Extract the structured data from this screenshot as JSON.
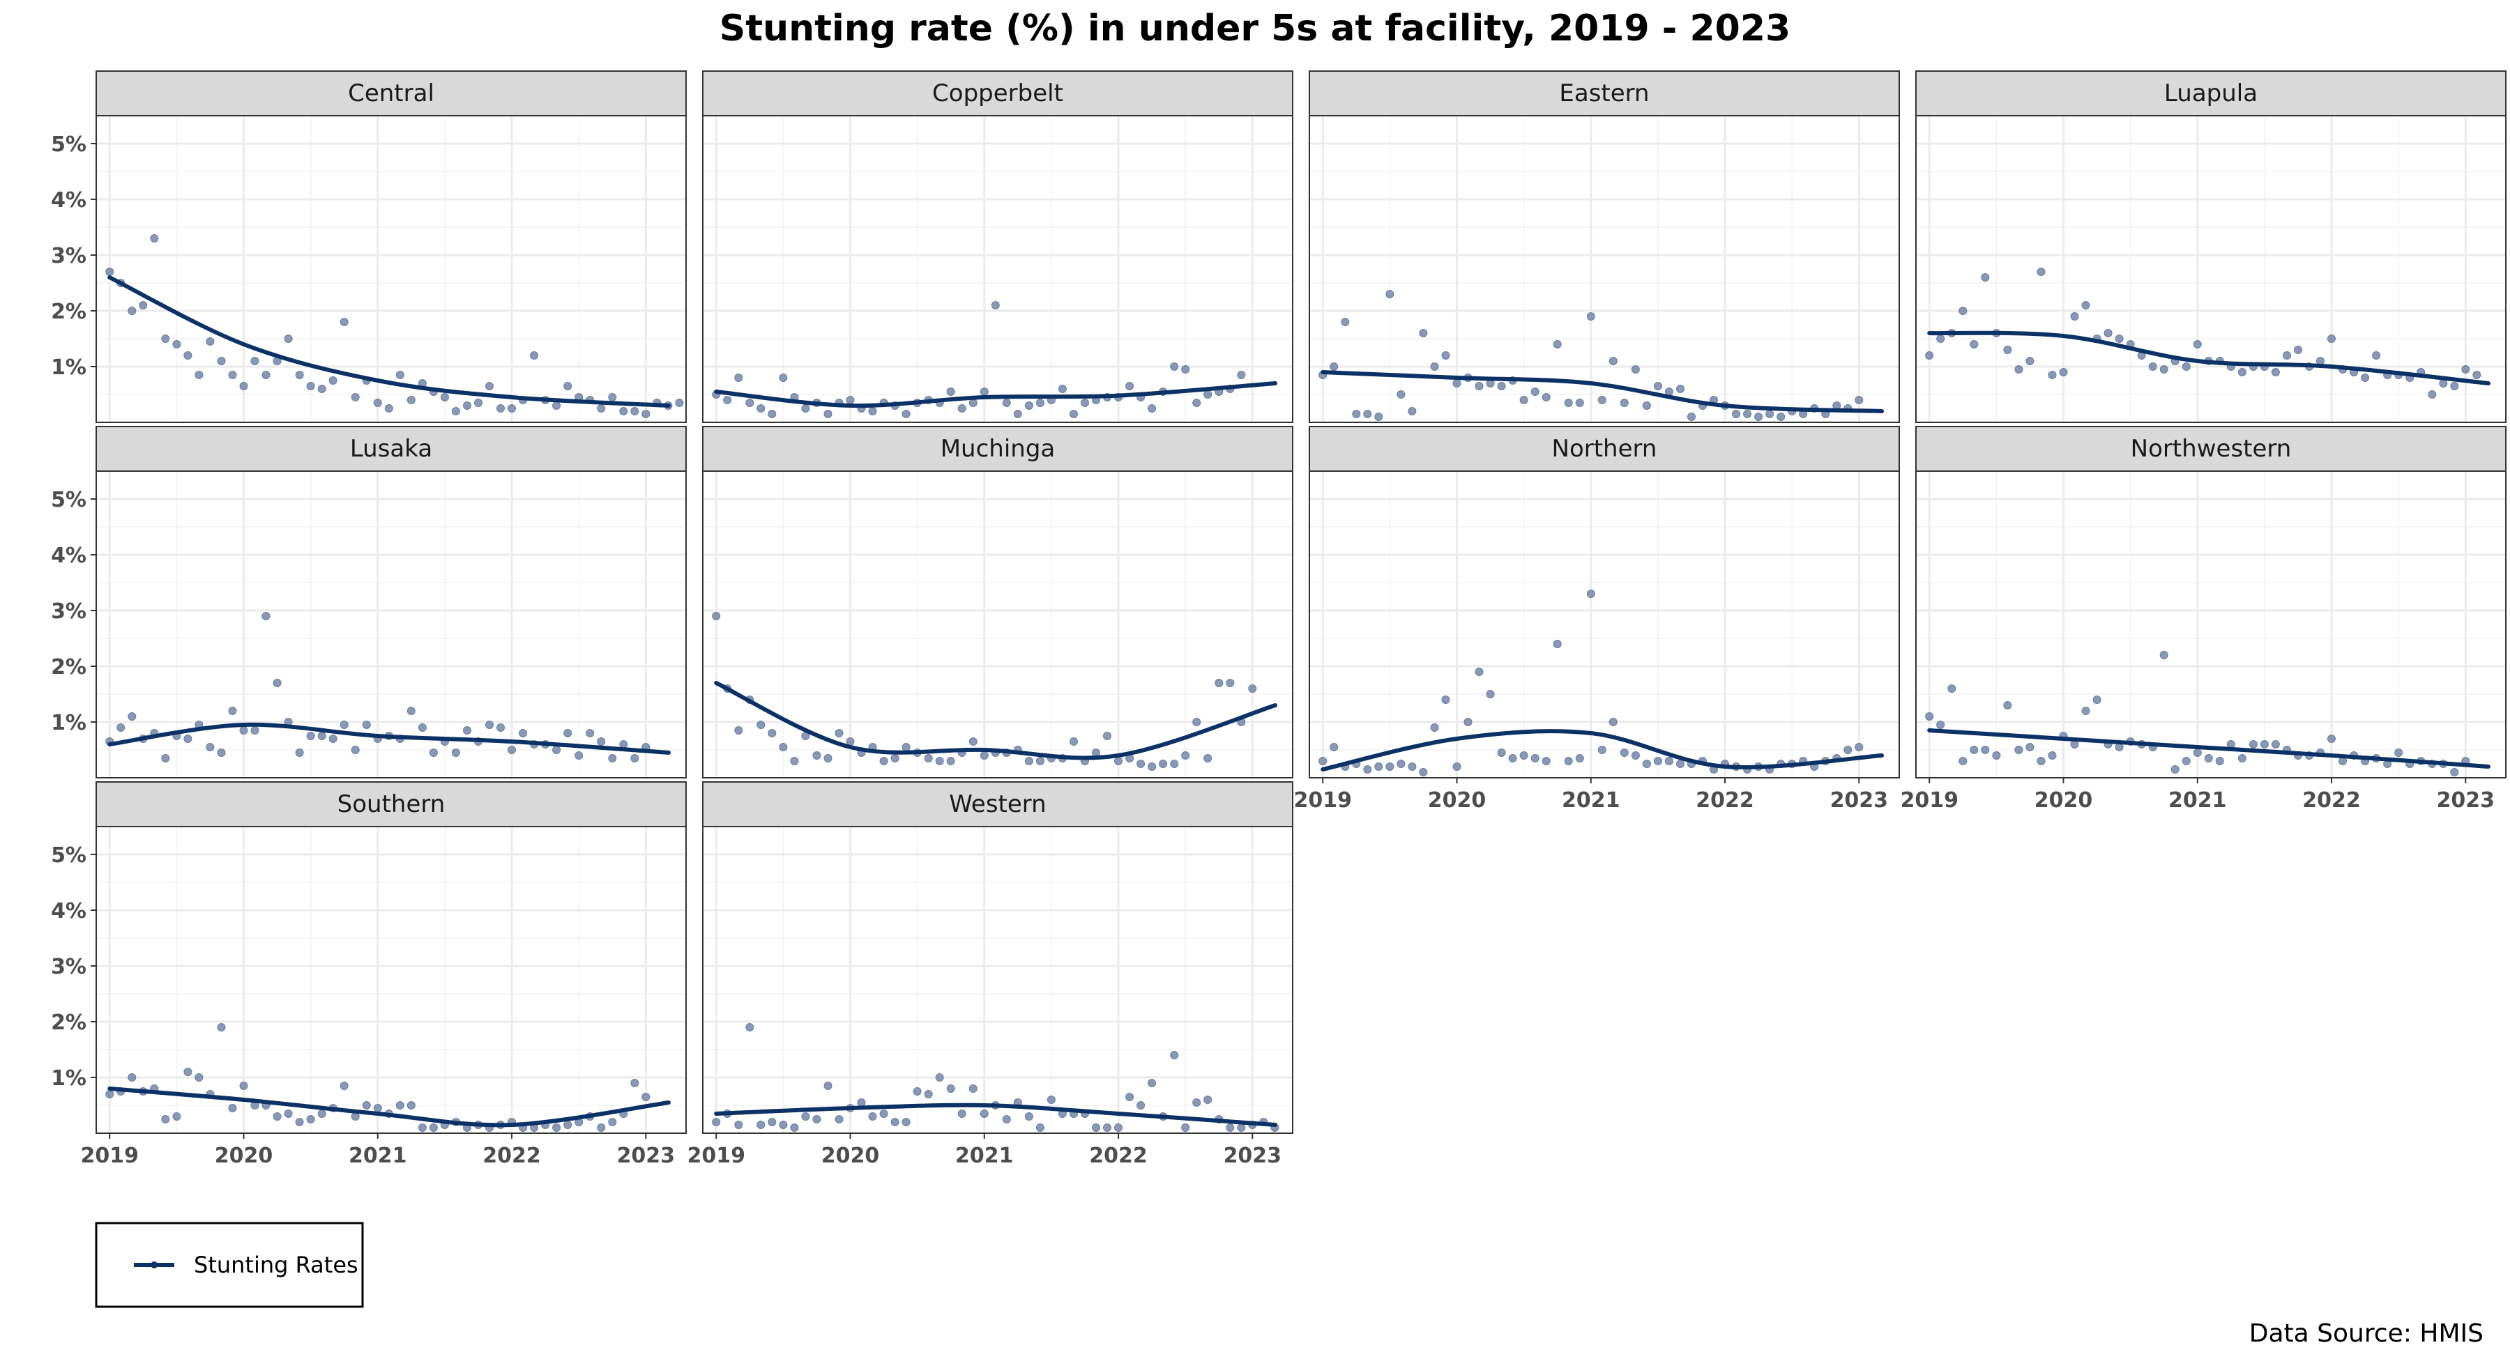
{
  "title": "Stunting rate (%) in under 5s at facility, 2019 - 2023",
  "source": "Data Source: HMIS",
  "legend": {
    "label": "Stunting Rates"
  },
  "colors": {
    "line": "#0b3166",
    "points": "#7b8fb0",
    "strip": "#d9d9d9",
    "grid": "#ebebeb",
    "border": "#333333"
  },
  "chart_data": {
    "type": "scatter",
    "layout": "small multiples, 4 columns x 3 rows",
    "ylim": [
      0,
      5.5
    ],
    "y_ticks": [
      "1%",
      "2%",
      "3%",
      "4%",
      "5%"
    ],
    "y_tick_values": [
      1,
      2,
      3,
      4,
      5
    ],
    "x_ticks": [
      "2019",
      "2020",
      "2021",
      "2022",
      "2023"
    ],
    "x_tick_values": [
      2019,
      2020,
      2021,
      2022,
      2023
    ],
    "xlim": [
      2018.9,
      2023.3
    ],
    "grid": true,
    "legend_position": "bottom-left",
    "trend": "smoothed",
    "panels": [
      {
        "name": "Central",
        "points": [
          2.7,
          2.5,
          2.0,
          2.1,
          3.3,
          1.5,
          1.4,
          1.2,
          0.85,
          1.45,
          1.1,
          0.85,
          0.65,
          1.1,
          0.85,
          1.1,
          1.5,
          0.85,
          0.65,
          0.6,
          0.75,
          1.8,
          0.45,
          0.75,
          0.35,
          0.25,
          0.85,
          0.4,
          0.7,
          0.55,
          0.45,
          0.2,
          0.3,
          0.35,
          0.65,
          0.25,
          0.25,
          0.4,
          1.2,
          0.4,
          0.3,
          0.65,
          0.45,
          0.4,
          0.25,
          0.45,
          0.2,
          0.2,
          0.15,
          0.35,
          0.3,
          0.35
        ],
        "trend": [
          2.6,
          1.4,
          0.75,
          0.45,
          0.3
        ]
      },
      {
        "name": "Copperbelt",
        "points": [
          0.5,
          0.4,
          0.8,
          0.35,
          0.25,
          0.15,
          0.8,
          0.45,
          0.25,
          0.35,
          0.15,
          0.35,
          0.4,
          0.25,
          0.2,
          0.35,
          0.3,
          0.15,
          0.35,
          0.4,
          0.35,
          0.55,
          0.25,
          0.35,
          0.55,
          2.1,
          0.35,
          0.15,
          0.3,
          0.35,
          0.4,
          0.6,
          0.15,
          0.35,
          0.4,
          0.45,
          0.45,
          0.65,
          0.45,
          0.25,
          0.55,
          1.0,
          0.95,
          0.35,
          0.5,
          0.55,
          0.6,
          0.85
        ],
        "trend": [
          0.55,
          0.3,
          0.45,
          0.48,
          0.7
        ]
      },
      {
        "name": "Eastern",
        "points": [
          0.85,
          1.0,
          1.8,
          0.15,
          0.15,
          0.1,
          2.3,
          0.5,
          0.2,
          1.6,
          1.0,
          1.2,
          0.7,
          0.8,
          0.65,
          0.7,
          0.65,
          0.75,
          0.4,
          0.55,
          0.45,
          1.4,
          0.35,
          0.35,
          1.9,
          0.4,
          1.1,
          0.35,
          0.95,
          0.3,
          0.65,
          0.55,
          0.6,
          0.1,
          0.3,
          0.4,
          0.3,
          0.15,
          0.15,
          0.1,
          0.15,
          0.1,
          0.2,
          0.15,
          0.25,
          0.15,
          0.3,
          0.25,
          0.4
        ],
        "trend": [
          0.9,
          0.8,
          0.7,
          0.3,
          0.2
        ]
      },
      {
        "name": "Luapula",
        "points": [
          1.2,
          1.5,
          1.6,
          2.0,
          1.4,
          2.6,
          1.6,
          1.3,
          0.95,
          1.1,
          2.7,
          0.85,
          0.9,
          1.9,
          2.1,
          1.5,
          1.6,
          1.5,
          1.4,
          1.2,
          1.0,
          0.95,
          1.1,
          1.0,
          1.4,
          1.1,
          1.1,
          1.0,
          0.9,
          1.0,
          1.0,
          0.9,
          1.2,
          1.3,
          1.0,
          1.1,
          1.5,
          0.95,
          0.9,
          0.8,
          1.2,
          0.85,
          0.85,
          0.8,
          0.9,
          0.5,
          0.7,
          0.65,
          0.95,
          0.85
        ],
        "trend": [
          1.6,
          1.55,
          1.1,
          1.0,
          0.7
        ]
      },
      {
        "name": "Lusaka",
        "points": [
          0.65,
          0.9,
          1.1,
          0.7,
          0.8,
          0.35,
          0.75,
          0.7,
          0.95,
          0.55,
          0.45,
          1.2,
          0.85,
          0.85,
          2.9,
          1.7,
          1.0,
          0.45,
          0.75,
          0.75,
          0.7,
          0.95,
          0.5,
          0.95,
          0.7,
          0.75,
          0.7,
          1.2,
          0.9,
          0.45,
          0.65,
          0.45,
          0.85,
          0.65,
          0.95,
          0.9,
          0.5,
          0.8,
          0.6,
          0.6,
          0.5,
          0.8,
          0.4,
          0.8,
          0.65,
          0.35,
          0.6,
          0.35,
          0.55
        ],
        "trend": [
          0.6,
          0.95,
          0.75,
          0.65,
          0.45
        ]
      },
      {
        "name": "Muchinga",
        "points": [
          2.9,
          1.6,
          0.85,
          1.4,
          0.95,
          0.8,
          0.55,
          0.3,
          0.75,
          0.4,
          0.35,
          0.8,
          0.65,
          0.45,
          0.55,
          0.3,
          0.35,
          0.55,
          0.45,
          0.35,
          0.3,
          0.3,
          0.45,
          0.65,
          0.4,
          0.45,
          0.45,
          0.5,
          0.3,
          0.3,
          0.35,
          0.35,
          0.65,
          0.3,
          0.45,
          0.75,
          0.3,
          0.35,
          0.25,
          0.2,
          0.25,
          0.25,
          0.4,
          1.0,
          0.35,
          1.7,
          1.7,
          1.0,
          1.6
        ],
        "trend": [
          1.7,
          0.55,
          0.5,
          0.4,
          1.3
        ]
      },
      {
        "name": "Northern",
        "points": [
          0.3,
          0.55,
          0.2,
          0.25,
          0.15,
          0.2,
          0.2,
          0.25,
          0.2,
          0.1,
          0.9,
          1.4,
          0.2,
          1.0,
          1.9,
          1.5,
          0.45,
          0.35,
          0.4,
          0.35,
          0.3,
          2.4,
          0.3,
          0.35,
          3.3,
          0.5,
          1.0,
          0.45,
          0.4,
          0.25,
          0.3,
          0.3,
          0.25,
          0.25,
          0.3,
          0.15,
          0.25,
          0.2,
          0.15,
          0.2,
          0.15,
          0.25,
          0.25,
          0.3,
          0.2,
          0.3,
          0.35,
          0.5,
          0.55
        ],
        "trend": [
          0.15,
          0.7,
          0.8,
          0.2,
          0.4
        ]
      },
      {
        "name": "Northwestern",
        "points": [
          1.1,
          0.95,
          1.6,
          0.3,
          0.5,
          0.5,
          0.4,
          1.3,
          0.5,
          0.55,
          0.3,
          0.4,
          0.75,
          0.6,
          1.2,
          1.4,
          0.6,
          0.55,
          0.65,
          0.6,
          0.55,
          2.2,
          0.15,
          0.3,
          0.45,
          0.35,
          0.3,
          0.6,
          0.35,
          0.6,
          0.6,
          0.6,
          0.5,
          0.4,
          0.4,
          0.45,
          0.7,
          0.3,
          0.4,
          0.3,
          0.35,
          0.25,
          0.45,
          0.25,
          0.3,
          0.25,
          0.25,
          0.1,
          0.3
        ],
        "trend": [
          0.85,
          0.7,
          0.55,
          0.4,
          0.2
        ]
      },
      {
        "name": "Southern",
        "points": [
          0.7,
          0.75,
          1.0,
          0.75,
          0.8,
          0.25,
          0.3,
          1.1,
          1.0,
          0.7,
          1.9,
          0.45,
          0.85,
          0.5,
          0.5,
          0.3,
          0.35,
          0.2,
          0.25,
          0.35,
          0.45,
          0.85,
          0.3,
          0.5,
          0.45,
          0.35,
          0.5,
          0.5,
          0.1,
          0.1,
          0.15,
          0.2,
          0.1,
          0.15,
          0.1,
          0.15,
          0.2,
          0.1,
          0.1,
          0.15,
          0.1,
          0.15,
          0.2,
          0.3,
          0.1,
          0.2,
          0.35,
          0.9,
          0.65
        ],
        "trend": [
          0.8,
          0.6,
          0.35,
          0.15,
          0.55
        ]
      },
      {
        "name": "Western",
        "points": [
          0.2,
          0.35,
          0.15,
          1.9,
          0.15,
          0.2,
          0.15,
          0.1,
          0.3,
          0.25,
          0.85,
          0.25,
          0.45,
          0.55,
          0.3,
          0.35,
          0.2,
          0.2,
          0.75,
          0.7,
          1.0,
          0.8,
          0.35,
          0.8,
          0.35,
          0.5,
          0.25,
          0.55,
          0.3,
          0.1,
          0.6,
          0.35,
          0.35,
          0.35,
          0.1,
          0.1,
          0.1,
          0.65,
          0.5,
          0.9,
          0.3,
          1.4,
          0.1,
          0.55,
          0.6,
          0.25,
          0.1,
          0.1,
          0.15,
          0.2,
          0.1
        ],
        "trend": [
          0.35,
          0.45,
          0.5,
          0.35,
          0.15
        ]
      }
    ]
  }
}
